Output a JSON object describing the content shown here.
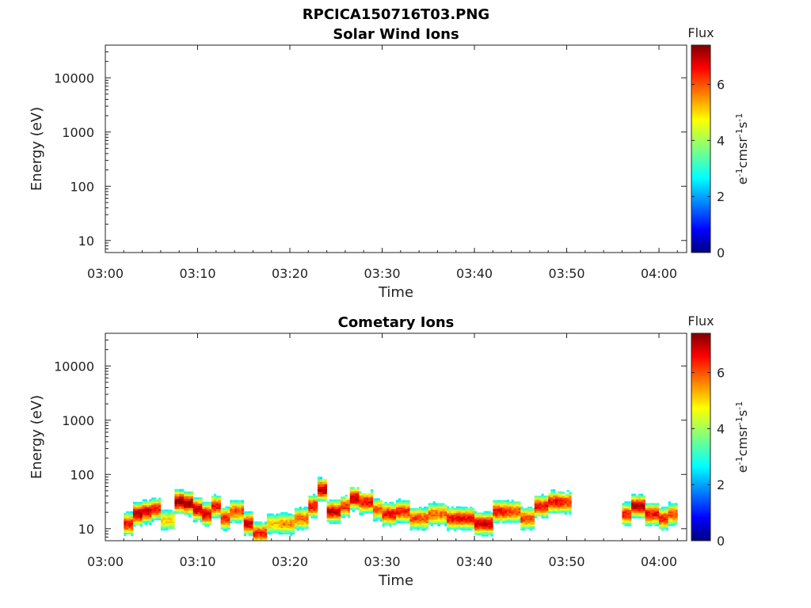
{
  "figure_title": "RPCICA150716T03.PNG",
  "chart_data": [
    {
      "type": "heatmap",
      "title": "Solar Wind Ions",
      "xlabel": "Time",
      "ylabel": "Energy (eV)",
      "x_ticks": [
        "03:00",
        "03:10",
        "03:20",
        "03:30",
        "03:40",
        "03:50",
        "04:00"
      ],
      "x_range_minutes": [
        0,
        63
      ],
      "y_scale": "log",
      "y_ticks": [
        "10",
        "100",
        "1000",
        "10000"
      ],
      "ylim": [
        6,
        40000
      ],
      "colorbar": {
        "label": "Flux",
        "unit": "eV-1cm-2sr-1s-1",
        "ticks": [
          "0",
          "2",
          "4",
          "6"
        ],
        "range": [
          0,
          7.4
        ],
        "colormap": "jet"
      },
      "grid": false,
      "data": []
    },
    {
      "type": "heatmap",
      "title": "Cometary Ions",
      "xlabel": "Time",
      "ylabel": "Energy (eV)",
      "x_ticks": [
        "03:00",
        "03:10",
        "03:20",
        "03:30",
        "03:40",
        "03:50",
        "04:00"
      ],
      "x_range_minutes": [
        0,
        63
      ],
      "y_scale": "log",
      "y_ticks": [
        "10",
        "100",
        "1000",
        "10000"
      ],
      "ylim": [
        6,
        40000
      ],
      "colorbar": {
        "label": "Flux",
        "unit": "eV-1cm-2sr-1s-1",
        "ticks": [
          "0",
          "2",
          "4",
          "6"
        ],
        "range": [
          0,
          7.4
        ],
        "colormap": "jet"
      },
      "grid": false,
      "data_columns": "[minute, peak_energy_eV, band_top_eV, max_flux]",
      "data": [
        [
          2.0,
          12,
          30,
          6.5
        ],
        [
          3.0,
          18,
          35,
          7.0
        ],
        [
          4.0,
          20,
          45,
          6.8
        ],
        [
          5.0,
          22,
          40,
          6.3
        ],
        [
          6.0,
          14,
          25,
          5.0
        ],
        [
          7.5,
          30,
          80,
          7.2
        ],
        [
          8.5,
          28,
          70,
          7.2
        ],
        [
          9.5,
          22,
          50,
          7.0
        ],
        [
          10.5,
          18,
          35,
          6.8
        ],
        [
          11.5,
          25,
          40,
          6.5
        ],
        [
          12.5,
          15,
          30,
          6.3
        ],
        [
          13.5,
          20,
          35,
          6.0
        ],
        [
          15.0,
          12,
          30,
          6.8
        ],
        [
          16.0,
          8,
          25,
          6.2
        ],
        [
          17.5,
          12,
          20,
          5.0
        ],
        [
          19.0,
          12,
          20,
          5.5
        ],
        [
          20.5,
          15,
          25,
          5.8
        ],
        [
          22.0,
          25,
          40,
          6.5
        ],
        [
          23.0,
          50,
          80,
          7.0
        ],
        [
          24.0,
          20,
          40,
          6.8
        ],
        [
          25.5,
          25,
          35,
          6.2
        ],
        [
          26.5,
          35,
          50,
          7.0
        ],
        [
          27.5,
          30,
          45,
          6.5
        ],
        [
          29.0,
          22,
          35,
          5.8
        ],
        [
          30.0,
          18,
          35,
          6.5
        ],
        [
          31.5,
          20,
          35,
          6.3
        ],
        [
          33.0,
          15,
          25,
          6.0
        ],
        [
          35.0,
          18,
          30,
          5.8
        ],
        [
          37.0,
          15,
          30,
          6.5
        ],
        [
          38.5,
          15,
          25,
          6.5
        ],
        [
          40.0,
          12,
          25,
          6.8
        ],
        [
          42.0,
          20,
          35,
          6.5
        ],
        [
          43.5,
          20,
          30,
          6.0
        ],
        [
          45.0,
          15,
          25,
          6.0
        ],
        [
          46.5,
          25,
          40,
          6.5
        ],
        [
          48.0,
          30,
          45,
          6.5
        ],
        [
          49.5,
          30,
          40,
          6.2
        ],
        [
          56.0,
          18,
          30,
          6.3
        ],
        [
          57.0,
          25,
          40,
          7.0
        ],
        [
          58.5,
          18,
          30,
          6.5
        ],
        [
          60.0,
          15,
          25,
          6.3
        ],
        [
          61.0,
          18,
          30,
          6.0
        ]
      ]
    }
  ]
}
